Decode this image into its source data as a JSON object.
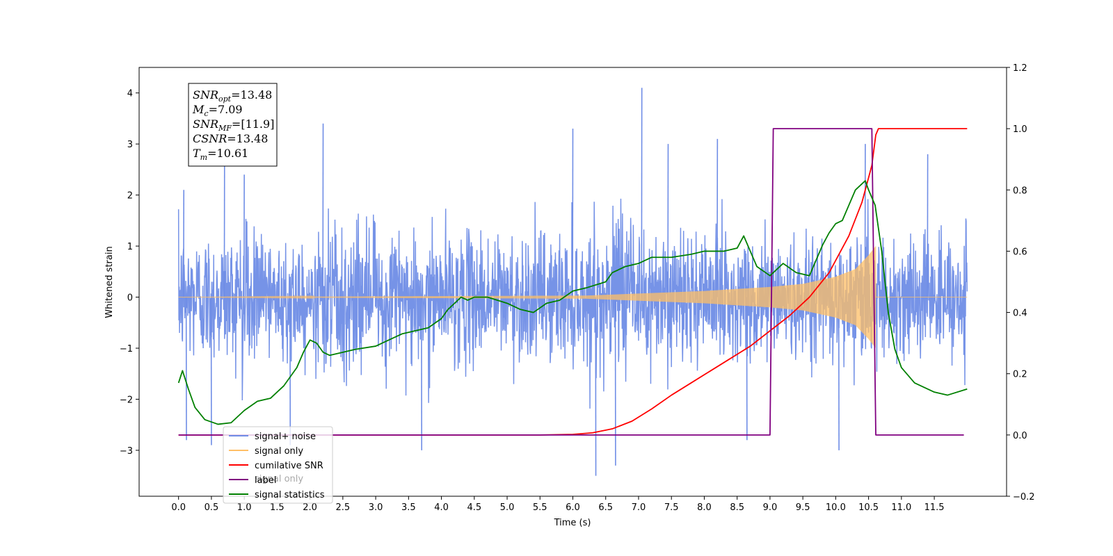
{
  "chart_data": {
    "type": "line",
    "title": "",
    "xlabel": "Time (s)",
    "ylabel": "Whitened strain",
    "y2label": "",
    "xlim": [
      -0.6,
      12.6
    ],
    "ylim": [
      -3.9,
      4.5
    ],
    "y2lim": [
      -0.2,
      1.2
    ],
    "x_ticks": [
      0.0,
      0.5,
      1.0,
      1.5,
      2.0,
      2.5,
      3.0,
      3.5,
      4.0,
      4.5,
      5.0,
      5.5,
      6.0,
      6.5,
      7.0,
      7.5,
      8.0,
      8.5,
      9.0,
      9.5,
      10.0,
      10.5,
      11.0,
      11.5
    ],
    "x_tick_labels": [
      "0.0",
      "0.5",
      "1.0",
      "1.5",
      "2.0",
      "2.5",
      "3.0",
      "3.5",
      "4.0",
      "4.5",
      "5.0",
      "5.5",
      "6.0",
      "6.5",
      "7.0",
      "7.5",
      "8.0",
      "8.5",
      "9.0",
      "9.5",
      "10.0",
      "10.5",
      "11.0",
      "11.5"
    ],
    "y_ticks": [
      -3,
      -2,
      -1,
      0,
      1,
      2,
      3,
      4
    ],
    "y_tick_labels": [
      "−3",
      "−2",
      "−1",
      "0",
      "1",
      "2",
      "3",
      "4"
    ],
    "y2_ticks": [
      -0.2,
      0.0,
      0.2,
      0.4,
      0.6,
      0.8,
      1.0,
      1.2
    ],
    "y2_tick_labels": [
      "−0.2",
      "0.0",
      "0.2",
      "0.4",
      "0.6",
      "0.8",
      "1.0",
      "1.2"
    ],
    "grid": false,
    "legend_position": "lower-left",
    "legend": [
      {
        "label": "signal+ noise",
        "color": "#6f8de6"
      },
      {
        "label": "signal only",
        "color": "#ffbf66"
      },
      {
        "label": "cumilative SNR",
        "color": "#ff0000"
      },
      {
        "label": "label",
        "color": "#800080"
      },
      {
        "label": "signal statistics",
        "color": "#008000"
      }
    ],
    "legend_hidden_text": "signal only",
    "annotation": {
      "lines": [
        {
          "base": "SNR",
          "sub": "opt",
          "value": "=13.48"
        },
        {
          "base": "M",
          "sub": "c",
          "value": "=7.09"
        },
        {
          "base": "SNR",
          "sub": "MF",
          "value": "=[11.9]"
        },
        {
          "base": "CSNR",
          "sub": "",
          "value": "=13.48"
        },
        {
          "base": "T",
          "sub": "m",
          "value": "=10.61"
        }
      ]
    },
    "series": [
      {
        "name": "signal+ noise",
        "axis": "left",
        "color": "#6f8de6",
        "x_range": [
          0.0,
          12.0
        ],
        "band": [
          -1.2,
          1.2
        ],
        "typical_peak": [
          2.0,
          -2.2
        ],
        "spikes": [
          {
            "x": 0.08,
            "y": 2.1
          },
          {
            "x": 0.12,
            "y": -2.8
          },
          {
            "x": 0.5,
            "y": -2.9
          },
          {
            "x": 0.7,
            "y": 2.8
          },
          {
            "x": 1.0,
            "y": 2.4
          },
          {
            "x": 1.7,
            "y": -2.9
          },
          {
            "x": 2.2,
            "y": 3.4
          },
          {
            "x": 3.7,
            "y": -3.0
          },
          {
            "x": 6.0,
            "y": 3.3
          },
          {
            "x": 6.35,
            "y": -3.5
          },
          {
            "x": 6.65,
            "y": -3.3
          },
          {
            "x": 7.05,
            "y": 4.1
          },
          {
            "x": 7.45,
            "y": 3.0
          },
          {
            "x": 8.2,
            "y": 3.1
          },
          {
            "x": 8.65,
            "y": -2.8
          },
          {
            "x": 10.05,
            "y": -3.0
          },
          {
            "x": 10.45,
            "y": 3.0
          },
          {
            "x": 11.4,
            "y": 2.8
          }
        ]
      },
      {
        "name": "signal only",
        "axis": "left",
        "color": "#ffbf66",
        "x_range": [
          0.0,
          12.0
        ],
        "chirp_merge_time": 10.61,
        "amplitude_at": [
          {
            "x": 0.0,
            "a": 0.0
          },
          {
            "x": 6.2,
            "a": 0.03
          },
          {
            "x": 8.0,
            "a": 0.12
          },
          {
            "x": 9.0,
            "a": 0.2
          },
          {
            "x": 9.5,
            "a": 0.26
          },
          {
            "x": 10.0,
            "a": 0.4
          },
          {
            "x": 10.3,
            "a": 0.55
          },
          {
            "x": 10.5,
            "a": 0.82
          },
          {
            "x": 10.61,
            "a": 1.0
          }
        ]
      },
      {
        "name": "cumilative SNR",
        "axis": "right",
        "color": "#ff0000",
        "x": [
          0.0,
          5.5,
          6.0,
          6.3,
          6.6,
          6.9,
          7.2,
          7.5,
          7.8,
          8.1,
          8.4,
          8.7,
          9.0,
          9.3,
          9.6,
          9.9,
          10.2,
          10.4,
          10.55,
          10.61,
          10.65,
          12.0
        ],
        "y": [
          0.0,
          0.0,
          0.002,
          0.007,
          0.02,
          0.045,
          0.085,
          0.13,
          0.17,
          0.21,
          0.25,
          0.29,
          0.34,
          0.39,
          0.45,
          0.53,
          0.65,
          0.76,
          0.88,
          0.98,
          1.0,
          1.0
        ]
      },
      {
        "name": "label",
        "axis": "right",
        "color": "#800080",
        "x": [
          0.0,
          9.0,
          9.05,
          10.55,
          10.61,
          11.95
        ],
        "y": [
          0.0,
          0.0,
          1.0,
          1.0,
          0.0,
          0.0
        ]
      },
      {
        "name": "signal statistics",
        "axis": "right",
        "color": "#008000",
        "x": [
          0.0,
          0.06,
          0.15,
          0.25,
          0.4,
          0.6,
          0.8,
          1.0,
          1.2,
          1.4,
          1.6,
          1.8,
          1.9,
          2.0,
          2.1,
          2.2,
          2.3,
          2.5,
          2.7,
          3.0,
          3.2,
          3.4,
          3.6,
          3.8,
          4.0,
          4.1,
          4.2,
          4.3,
          4.4,
          4.5,
          4.7,
          5.0,
          5.2,
          5.4,
          5.6,
          5.8,
          6.0,
          6.2,
          6.5,
          6.6,
          6.8,
          7.0,
          7.2,
          7.5,
          7.8,
          8.0,
          8.3,
          8.5,
          8.6,
          8.7,
          8.8,
          9.0,
          9.2,
          9.4,
          9.6,
          9.8,
          9.9,
          10.0,
          10.1,
          10.2,
          10.3,
          10.4,
          10.45,
          10.5,
          10.6,
          10.7,
          10.8,
          10.9,
          11.0,
          11.2,
          11.5,
          11.7,
          12.0
        ],
        "y": [
          0.17,
          0.21,
          0.15,
          0.09,
          0.05,
          0.035,
          0.04,
          0.08,
          0.11,
          0.12,
          0.16,
          0.22,
          0.27,
          0.31,
          0.3,
          0.27,
          0.26,
          0.27,
          0.28,
          0.29,
          0.31,
          0.33,
          0.34,
          0.35,
          0.38,
          0.41,
          0.43,
          0.45,
          0.44,
          0.45,
          0.45,
          0.43,
          0.41,
          0.4,
          0.43,
          0.44,
          0.47,
          0.48,
          0.5,
          0.53,
          0.55,
          0.56,
          0.58,
          0.58,
          0.59,
          0.6,
          0.6,
          0.61,
          0.65,
          0.6,
          0.55,
          0.52,
          0.56,
          0.53,
          0.52,
          0.62,
          0.66,
          0.69,
          0.7,
          0.75,
          0.8,
          0.82,
          0.83,
          0.8,
          0.75,
          0.6,
          0.4,
          0.28,
          0.22,
          0.17,
          0.14,
          0.13,
          0.15
        ]
      }
    ]
  }
}
